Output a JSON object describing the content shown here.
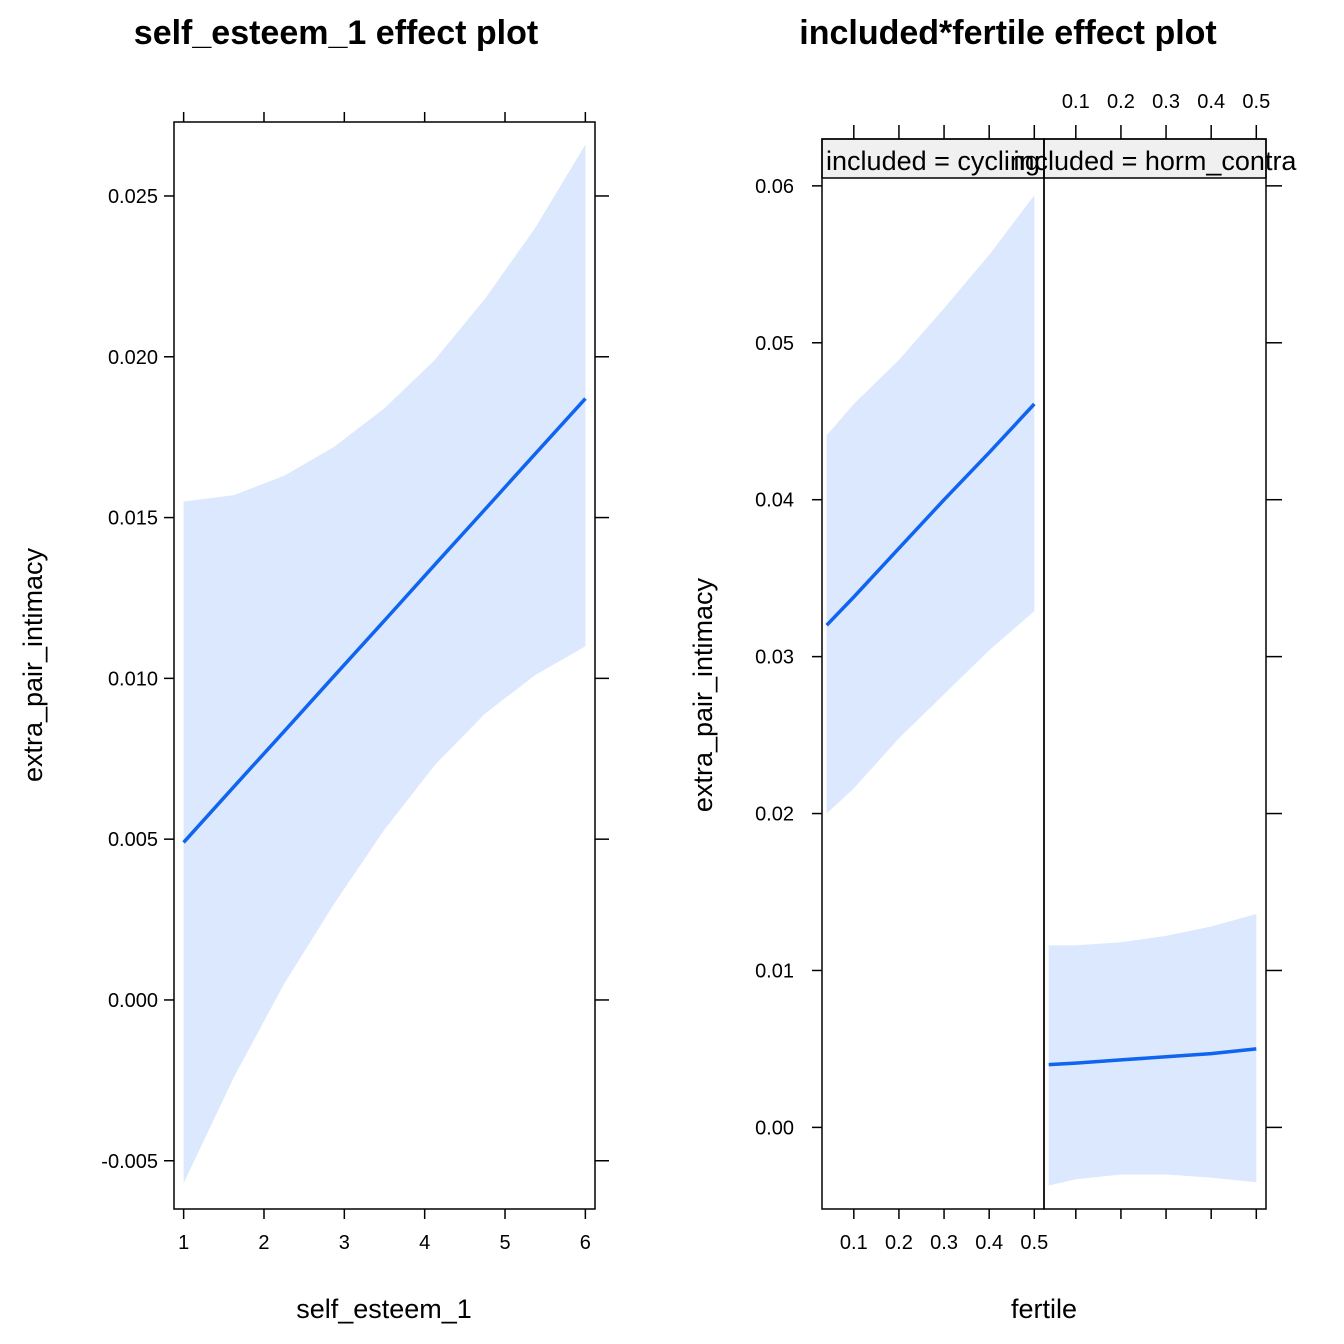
{
  "chart_data": [
    {
      "type": "line",
      "title": "self_esteem_1 effect plot",
      "xlabel": "self_esteem_1",
      "ylabel": "extra_pair_intimacy",
      "xlim": [
        0.88,
        6.12
      ],
      "ylim": [
        -0.0065,
        0.0273
      ],
      "x_ticks": [
        1,
        2,
        3,
        4,
        5,
        6
      ],
      "x_tick_labels": [
        "1",
        "2",
        "3",
        "4",
        "5",
        "6"
      ],
      "y_ticks": [
        -0.005,
        0.0,
        0.005,
        0.01,
        0.015,
        0.02,
        0.025
      ],
      "y_tick_labels": [
        "-0.005",
        "0.000",
        "0.005",
        "0.010",
        "0.015",
        "0.020",
        "0.025"
      ],
      "line_color": "#0f64f0",
      "band_color": "#dce8fd",
      "series": [
        {
          "x": [
            1,
            1.625,
            2.25,
            2.875,
            3.5,
            4.125,
            4.75,
            5.375,
            6
          ],
          "fit": [
            0.0049,
            0.00663,
            0.00835,
            0.01008,
            0.0118,
            0.01353,
            0.01525,
            0.01698,
            0.0187
          ],
          "lower": [
            -0.0057,
            -0.0024,
            0.0005,
            0.003,
            0.0053,
            0.0073,
            0.0089,
            0.0101,
            0.011
          ],
          "upper": [
            0.0155,
            0.0157,
            0.0163,
            0.0172,
            0.0184,
            0.0199,
            0.0218,
            0.024,
            0.0266
          ]
        }
      ]
    },
    {
      "type": "line",
      "title": "included*fertile effect plot",
      "xlabel": "fertile",
      "ylabel": "extra_pair_intimacy",
      "xlim": [
        0.0295,
        0.5215
      ],
      "ylim": [
        -0.0052,
        0.0605
      ],
      "x_ticks": [
        0.1,
        0.2,
        0.3,
        0.4,
        0.5
      ],
      "x_tick_labels": [
        "0.1",
        "0.2",
        "0.3",
        "0.4",
        "0.5"
      ],
      "y_ticks": [
        0.0,
        0.01,
        0.02,
        0.03,
        0.04,
        0.05,
        0.06
      ],
      "y_tick_labels": [
        "0.00",
        "0.01",
        "0.02",
        "0.03",
        "0.04",
        "0.05",
        "0.06"
      ],
      "line_color": "#0f64f0",
      "band_color": "#dce8fd",
      "panels": [
        {
          "strip": "included = cycling",
          "x": [
            0.04,
            0.1,
            0.2,
            0.3,
            0.4,
            0.5
          ],
          "fit": [
            0.032,
            0.0338,
            0.0369,
            0.04,
            0.043,
            0.0461
          ],
          "lower": [
            0.02,
            0.0216,
            0.0248,
            0.0276,
            0.0304,
            0.0329
          ],
          "upper": [
            0.0441,
            0.0461,
            0.0489,
            0.0522,
            0.0556,
            0.0594
          ]
        },
        {
          "strip": "included = horm_contra",
          "x": [
            0.04,
            0.1,
            0.2,
            0.3,
            0.4,
            0.5
          ],
          "fit": [
            0.004,
            0.0041,
            0.0043,
            0.0045,
            0.0047,
            0.005
          ],
          "lower": [
            -0.0037,
            -0.0033,
            -0.003,
            -0.003,
            -0.0032,
            -0.0035
          ],
          "upper": [
            0.0116,
            0.0116,
            0.0118,
            0.0122,
            0.0128,
            0.0136
          ]
        }
      ]
    }
  ]
}
